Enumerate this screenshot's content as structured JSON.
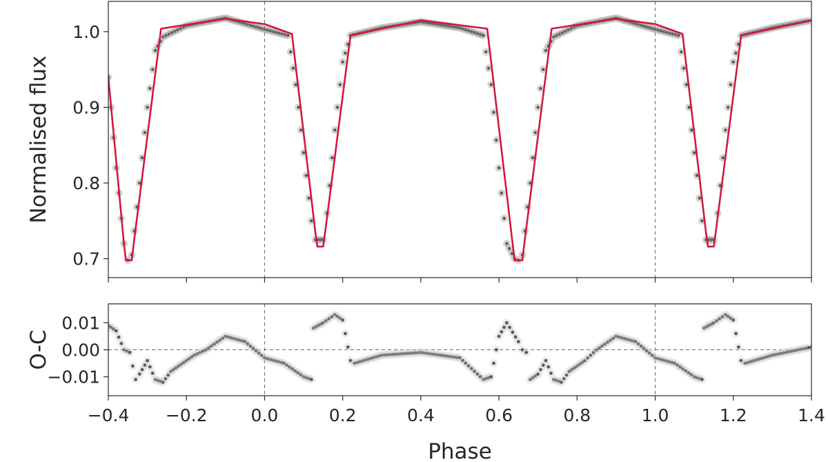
{
  "chart_data": [
    {
      "type": "line",
      "panel": "light-curve",
      "xlim": [
        -0.4,
        1.4
      ],
      "ylim": [
        0.675,
        1.04
      ],
      "ylabel": "Normalised flux",
      "xticks": [
        -0.4,
        -0.2,
        0.0,
        0.2,
        0.4,
        0.6,
        0.8,
        1.0,
        1.2,
        1.4
      ],
      "yticks": [
        0.7,
        0.8,
        0.9,
        1.0
      ],
      "ytick_labels": [
        "0.7",
        "0.8",
        "0.9",
        "1.0"
      ],
      "vlines": [
        0.0,
        1.0
      ],
      "series": [
        {
          "role": "observed",
          "style": "dots",
          "color": "#5a5a5a",
          "x": [
            -0.4,
            -0.38,
            -0.36,
            -0.35,
            -0.34,
            -0.32,
            -0.3,
            -0.28,
            -0.26,
            -0.2,
            -0.1,
            0.0,
            0.06,
            0.08,
            0.1,
            0.12,
            0.13,
            0.15,
            0.16,
            0.18,
            0.2,
            0.22,
            0.3,
            0.4,
            0.5,
            0.56,
            0.58,
            0.6,
            0.62,
            0.64,
            0.65,
            0.66,
            0.68,
            0.7,
            0.72,
            0.74,
            0.8,
            0.9,
            1.0,
            1.06,
            1.08,
            1.1,
            1.12,
            1.13,
            1.15,
            1.16,
            1.18,
            1.2,
            1.22,
            1.3,
            1.4
          ],
          "y": [
            0.94,
            0.82,
            0.72,
            0.698,
            0.705,
            0.8,
            0.9,
            0.975,
            0.993,
            1.008,
            1.018,
            1.003,
            0.995,
            0.93,
            0.84,
            0.75,
            0.725,
            0.725,
            0.76,
            0.87,
            0.96,
            0.995,
            1.005,
            1.013,
            1.005,
            0.995,
            0.93,
            0.82,
            0.72,
            0.7,
            0.698,
            0.705,
            0.8,
            0.9,
            0.975,
            0.993,
            1.008,
            1.018,
            1.003,
            0.995,
            0.93,
            0.84,
            0.75,
            0.725,
            0.725,
            0.76,
            0.87,
            0.96,
            0.995,
            1.005,
            1.015
          ]
        },
        {
          "role": "model",
          "style": "line",
          "color": "#d1183f",
          "x": [
            -0.4,
            -0.36,
            -0.355,
            -0.34,
            -0.335,
            -0.265,
            -0.1,
            0.0,
            0.07,
            0.13,
            0.135,
            0.15,
            0.155,
            0.22,
            0.4,
            0.57,
            0.635,
            0.64,
            0.66,
            0.665,
            0.735,
            0.9,
            1.0,
            1.07,
            1.13,
            1.135,
            1.15,
            1.155,
            1.22,
            1.4
          ],
          "y": [
            0.94,
            0.72,
            0.698,
            0.698,
            0.72,
            1.004,
            1.017,
            1.01,
            0.997,
            0.735,
            0.716,
            0.716,
            0.735,
            0.995,
            1.015,
            1.004,
            0.72,
            0.698,
            0.698,
            0.72,
            1.004,
            1.017,
            1.01,
            0.997,
            0.735,
            0.716,
            0.716,
            0.735,
            0.995,
            1.015
          ]
        }
      ]
    },
    {
      "type": "scatter",
      "panel": "residuals",
      "xlim": [
        -0.4,
        1.4
      ],
      "ylim": [
        -0.017,
        0.017
      ],
      "xlabel": "Phase",
      "ylabel": "O-C",
      "xticks": [
        -0.4,
        -0.2,
        0.0,
        0.2,
        0.4,
        0.6,
        0.8,
        1.0,
        1.2,
        1.4
      ],
      "xtick_labels": [
        "−0.4",
        "−0.2",
        "0.0",
        "0.2",
        "0.4",
        "0.6",
        "0.8",
        "1.0",
        "1.2",
        "1.4"
      ],
      "yticks": [
        -0.01,
        0.0,
        0.01
      ],
      "ytick_labels": [
        "−0.01",
        "0.00",
        "0.01"
      ],
      "vlines": [
        0.0,
        1.0
      ],
      "hlines": [
        0.0
      ],
      "series": [
        {
          "role": "residuals",
          "style": "dots",
          "color": "#5a5a5a",
          "x": [
            -0.4,
            -0.38,
            -0.36,
            -0.345,
            -0.33,
            -0.32,
            -0.3,
            -0.28,
            -0.26,
            -0.24,
            -0.22,
            -0.2,
            -0.18,
            -0.15,
            -0.1,
            -0.05,
            0.0,
            0.05,
            0.1,
            0.12,
            0.125,
            0.15,
            0.18,
            0.2,
            0.22,
            0.23,
            0.3,
            0.4,
            0.5,
            0.56,
            0.58,
            0.6,
            0.62,
            0.65,
            0.66,
            0.67,
            0.68,
            0.7,
            0.72,
            0.74,
            0.76,
            0.78,
            0.8,
            0.82,
            0.85,
            0.9,
            0.95,
            1.0,
            1.05,
            1.1,
            1.12,
            1.125,
            1.15,
            1.18,
            1.2,
            1.22,
            1.23,
            1.3,
            1.4
          ],
          "y": [
            0.009,
            0.007,
            0.0,
            -0.001,
            -0.011,
            -0.009,
            -0.004,
            -0.011,
            -0.012,
            -0.008,
            -0.006,
            -0.004,
            -0.002,
            0.0,
            0.005,
            0.003,
            -0.003,
            -0.005,
            -0.01,
            -0.011,
            0.008,
            0.01,
            0.013,
            0.011,
            -0.004,
            -0.005,
            -0.002,
            -0.001,
            -0.003,
            -0.011,
            -0.01,
            0.005,
            0.01,
            0.003,
            0.0,
            -0.001,
            -0.011,
            -0.009,
            -0.004,
            -0.011,
            -0.012,
            -0.008,
            -0.006,
            -0.004,
            0.0,
            0.005,
            0.003,
            -0.003,
            -0.005,
            -0.01,
            -0.011,
            0.008,
            0.01,
            0.013,
            0.011,
            -0.004,
            -0.005,
            -0.002,
            0.001
          ]
        }
      ]
    }
  ]
}
